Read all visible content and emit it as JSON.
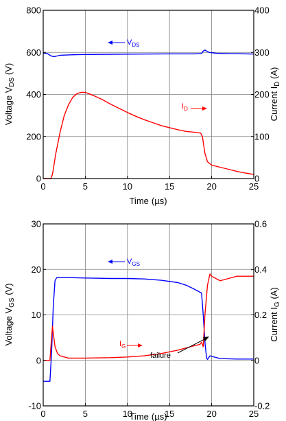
{
  "chart_data": [
    {
      "type": "line",
      "xlabel_text": "Time",
      "xlabel_unit": "(µs)",
      "ylabel_left": {
        "prefix": "Voltage  V",
        "sub": "DS",
        "suffix": " (V)"
      },
      "ylabel_right": {
        "prefix": "Current  I",
        "sub": "D",
        "suffix": " (A)"
      },
      "xlim": [
        0,
        25
      ],
      "ylim_left": [
        0,
        800
      ],
      "ylim_right": [
        0,
        400
      ],
      "x_ticks": [
        "0",
        "5",
        "10",
        "15",
        "20",
        "25"
      ],
      "y_ticks_left": [
        "0",
        "200",
        "400",
        "600",
        "800"
      ],
      "y_ticks_right": [
        "0",
        "100",
        "200",
        "300",
        "400"
      ],
      "grid": true,
      "series": [
        {
          "name": "VDS",
          "axis": "left",
          "color": "#0000ff",
          "points": [
            [
              0,
              596
            ],
            [
              0.5,
              594
            ],
            [
              1.0,
              582
            ],
            [
              1.3,
              580
            ],
            [
              2,
              586
            ],
            [
              3,
              588
            ],
            [
              4,
              589
            ],
            [
              5,
              590
            ],
            [
              8,
              591
            ],
            [
              12,
              592
            ],
            [
              15,
              593
            ],
            [
              18,
              593
            ],
            [
              18.8,
              594
            ],
            [
              19.0,
              606
            ],
            [
              19.2,
              611
            ],
            [
              19.4,
              606
            ],
            [
              19.7,
              600
            ],
            [
              20.5,
              596
            ],
            [
              22,
              594
            ],
            [
              24,
              593
            ],
            [
              25,
              592
            ]
          ]
        },
        {
          "name": "ID",
          "axis": "right",
          "color": "#ff0000",
          "points": [
            [
              0,
              0
            ],
            [
              0.9,
              0
            ],
            [
              1.1,
              10
            ],
            [
              1.5,
              60
            ],
            [
              2,
              110
            ],
            [
              2.5,
              150
            ],
            [
              3,
              175
            ],
            [
              3.5,
              193
            ],
            [
              4,
              202
            ],
            [
              4.5,
              205
            ],
            [
              5,
              205
            ],
            [
              6,
              197
            ],
            [
              7,
              188
            ],
            [
              8,
              177
            ],
            [
              9,
              167
            ],
            [
              10,
              157
            ],
            [
              11,
              148
            ],
            [
              12,
              140
            ],
            [
              13,
              133
            ],
            [
              14,
              126
            ],
            [
              15,
              121
            ],
            [
              16,
              116
            ],
            [
              17,
              112
            ],
            [
              18,
              110
            ],
            [
              18.7,
              108
            ],
            [
              18.9,
              100
            ],
            [
              19.2,
              60
            ],
            [
              19.5,
              40
            ],
            [
              20,
              32
            ],
            [
              21,
              27
            ],
            [
              22,
              22
            ],
            [
              23,
              17
            ],
            [
              24,
              13
            ],
            [
              25,
              10
            ]
          ]
        }
      ],
      "annotations": [
        {
          "name": "VDS",
          "label_prefix": "V",
          "label_sub": "DS",
          "color": "#0000ff",
          "arrow": "left"
        },
        {
          "name": "ID",
          "label_prefix": "I",
          "label_sub": "D",
          "color": "#ff0000",
          "arrow": "right"
        }
      ]
    },
    {
      "type": "line",
      "xlabel_text": "Time",
      "xlabel_unit": "(µs)",
      "ylabel_left": {
        "prefix": "Voltage  V",
        "sub": "GS",
        "suffix": " (V)"
      },
      "ylabel_right": {
        "prefix": "Current  I",
        "sub": "G",
        "suffix": " (A)"
      },
      "xlim": [
        0,
        25
      ],
      "ylim_left": [
        -10,
        30
      ],
      "ylim_right": [
        -0.2,
        0.6
      ],
      "x_ticks": [
        "0",
        "5",
        "10",
        "15",
        "20",
        "25"
      ],
      "y_ticks_left": [
        "-10",
        "0",
        "10",
        "20",
        "30"
      ],
      "y_ticks_right": [
        "-0.2",
        "0",
        "0.2",
        "0.4",
        "0.6"
      ],
      "grid": true,
      "series": [
        {
          "name": "VGS",
          "axis": "left",
          "color": "#0000ff",
          "points": [
            [
              0,
              -4.6
            ],
            [
              0.8,
              -4.6
            ],
            [
              1.0,
              2
            ],
            [
              1.2,
              12
            ],
            [
              1.4,
              17.5
            ],
            [
              1.6,
              18.2
            ],
            [
              3,
              18.2
            ],
            [
              5,
              18.1
            ],
            [
              8,
              18.0
            ],
            [
              10,
              18.0
            ],
            [
              12,
              17.9
            ],
            [
              14,
              17.6
            ],
            [
              16,
              17.1
            ],
            [
              17,
              16.5
            ],
            [
              18,
              15.6
            ],
            [
              18.8,
              14.8
            ],
            [
              19.0,
              10
            ],
            [
              19.2,
              4
            ],
            [
              19.4,
              0.5
            ],
            [
              19.5,
              0.2
            ],
            [
              19.8,
              1.0
            ],
            [
              20.2,
              0.8
            ],
            [
              21,
              0.4
            ],
            [
              23,
              0.3
            ],
            [
              25,
              0.3
            ]
          ]
        },
        {
          "name": "IG",
          "axis": "right",
          "color": "#ff0000",
          "points": [
            [
              0,
              0
            ],
            [
              0.8,
              0
            ],
            [
              0.95,
              0.08
            ],
            [
              1.1,
              0.15
            ],
            [
              1.2,
              0.12
            ],
            [
              1.4,
              0.06
            ],
            [
              1.7,
              0.03
            ],
            [
              2,
              0.02
            ],
            [
              3,
              0.01
            ],
            [
              5,
              0.01
            ],
            [
              8,
              0.012
            ],
            [
              10,
              0.015
            ],
            [
              12,
              0.02
            ],
            [
              14,
              0.03
            ],
            [
              16,
              0.045
            ],
            [
              17,
              0.055
            ],
            [
              18,
              0.065
            ],
            [
              18.6,
              0.07
            ],
            [
              18.8,
              0.08
            ],
            [
              19.0,
              0.06
            ],
            [
              19.2,
              0.2
            ],
            [
              19.5,
              0.33
            ],
            [
              19.8,
              0.38
            ],
            [
              20,
              0.37
            ],
            [
              20.5,
              0.36
            ],
            [
              21,
              0.35
            ],
            [
              22,
              0.36
            ],
            [
              23,
              0.37
            ],
            [
              24,
              0.37
            ],
            [
              25,
              0.37
            ]
          ]
        }
      ],
      "annotations": [
        {
          "name": "VGS",
          "label_prefix": "V",
          "label_sub": "GS",
          "color": "#0000ff",
          "arrow": "left"
        },
        {
          "name": "IG",
          "label_prefix": "I",
          "label_sub": "G",
          "color": "#ff0000",
          "arrow": "right"
        },
        {
          "name": "failure",
          "label": "failure",
          "color": "#000000",
          "arrow": "to-point",
          "target": [
            19.9,
            0.8
          ]
        }
      ]
    }
  ]
}
